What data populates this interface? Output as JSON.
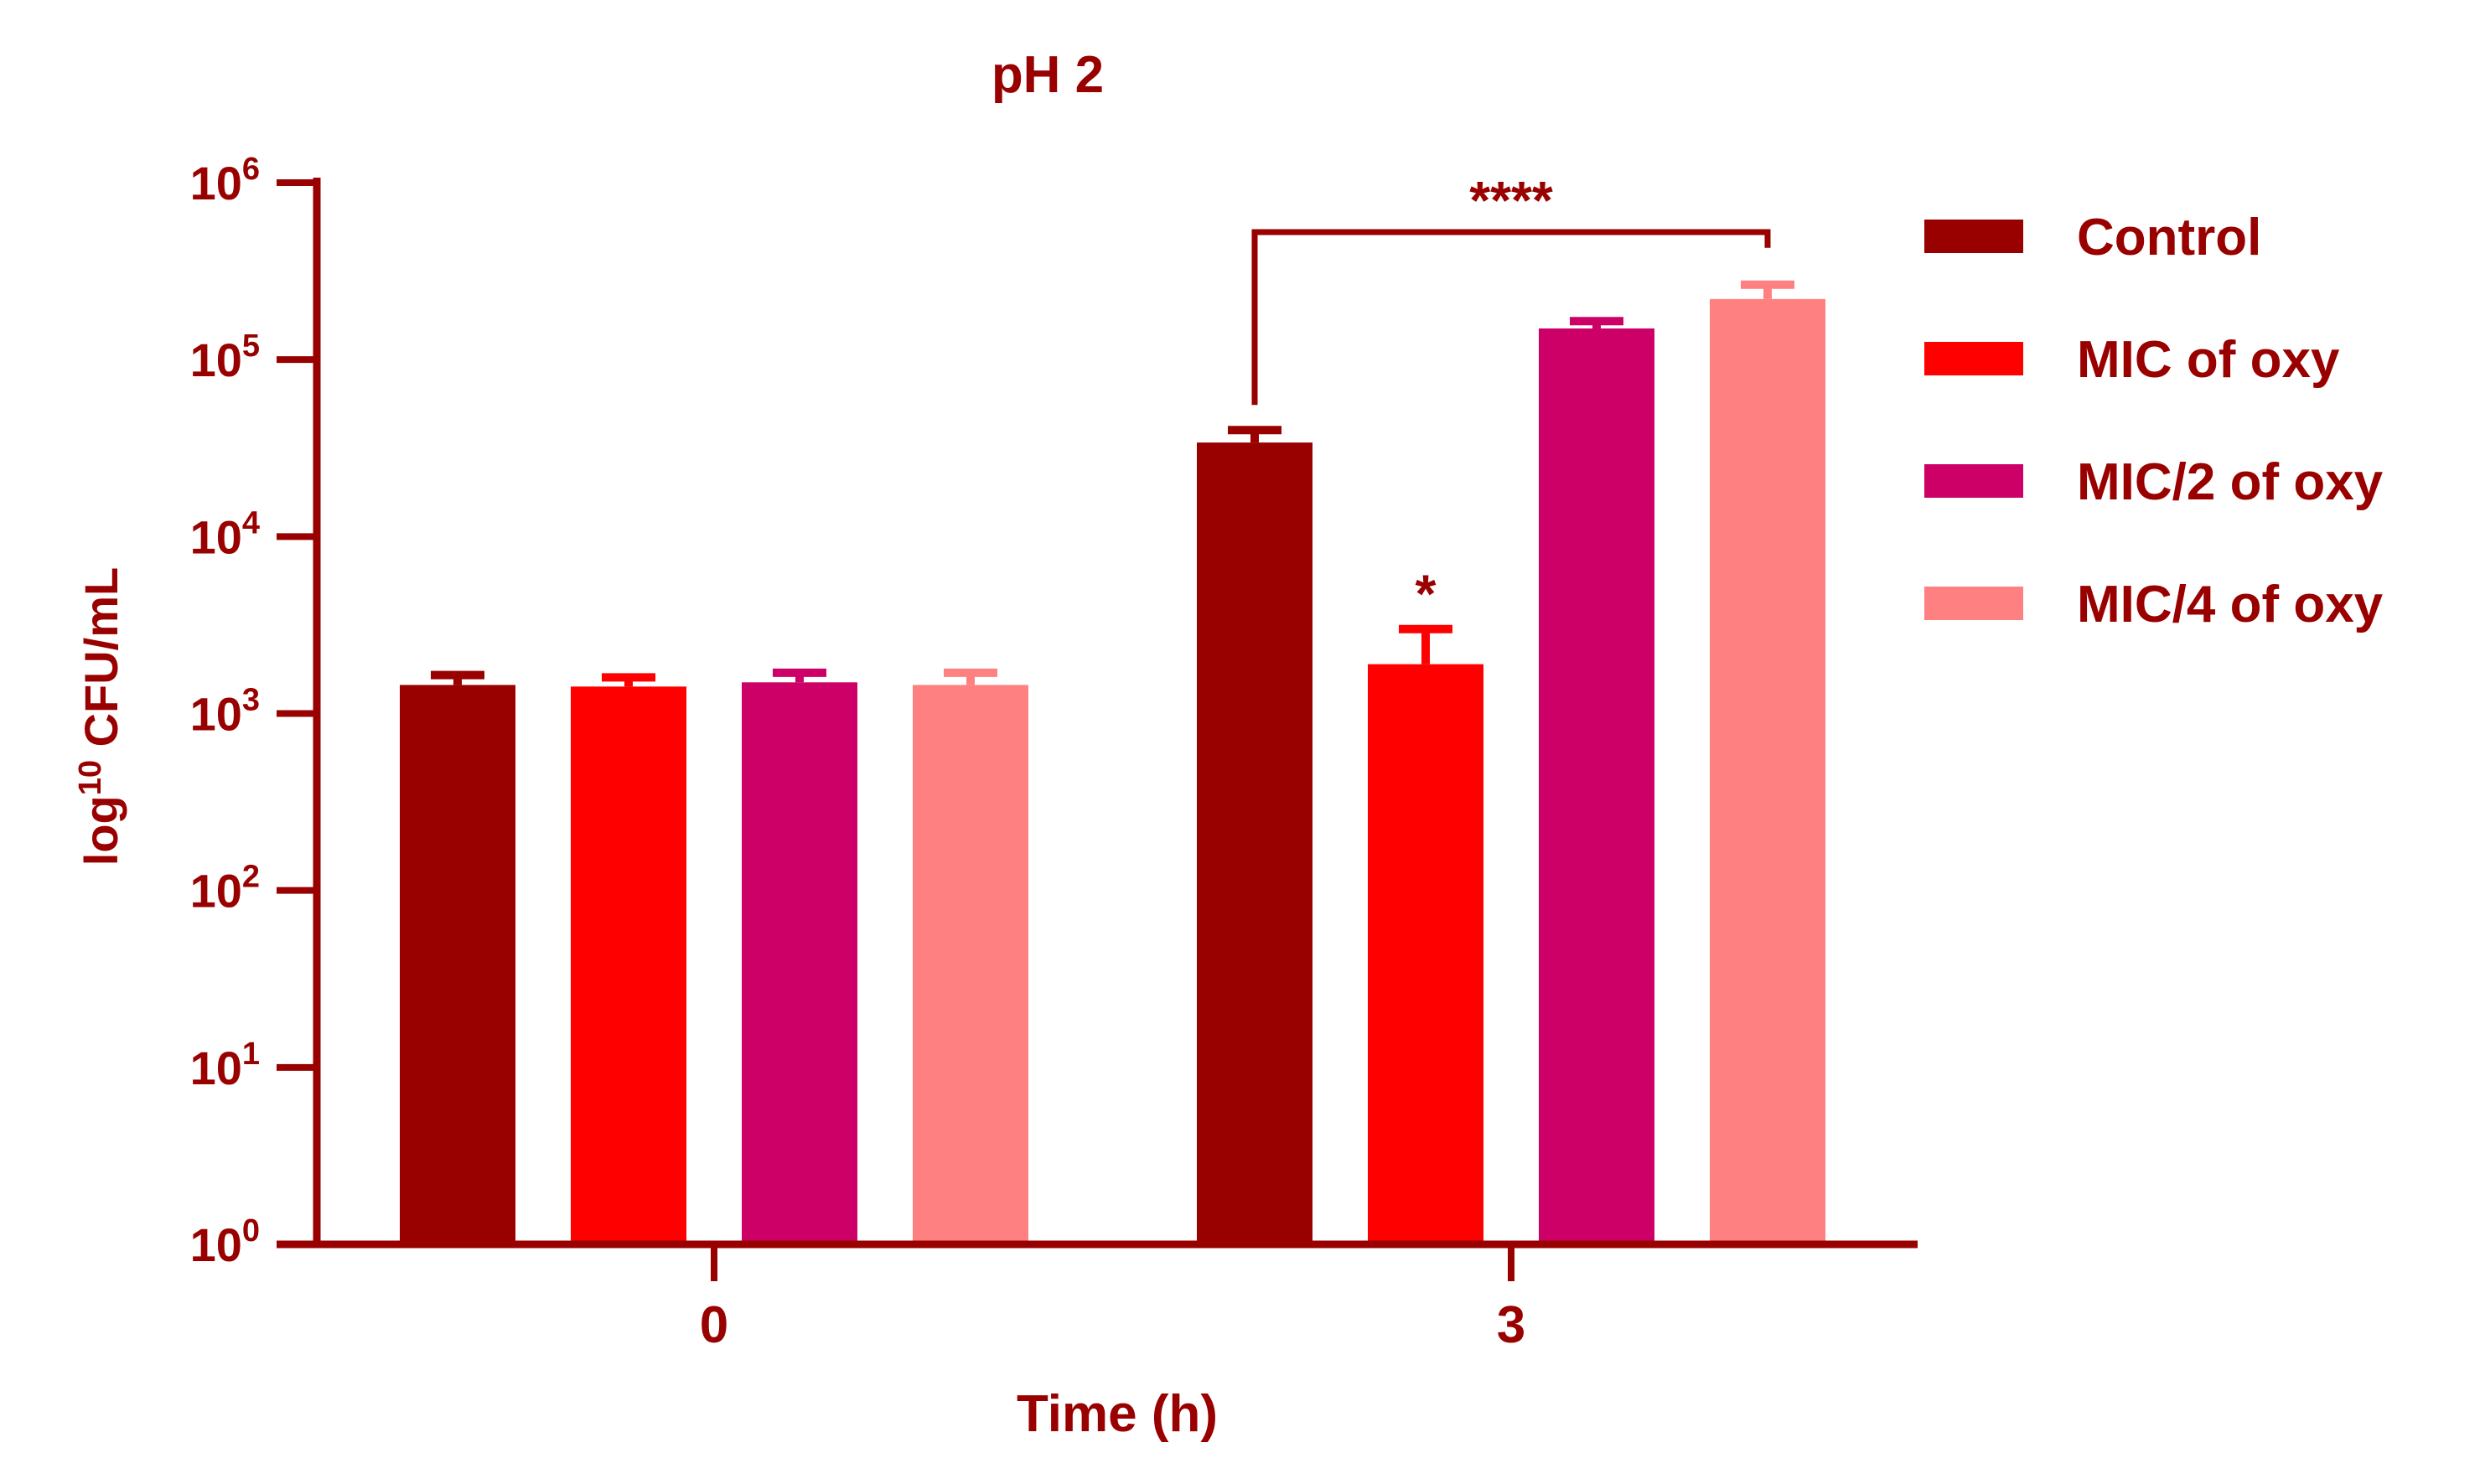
{
  "chart_data": {
    "type": "bar",
    "title": "pH 2",
    "xlabel": "Time (h)",
    "ylabel": {
      "base": "log",
      "sup": "10",
      "rest": " CFU/mL"
    },
    "yscale": "log",
    "ylim": [
      1,
      1000000
    ],
    "yticks": [
      {
        "value": 1,
        "base": "10",
        "exp": "0"
      },
      {
        "value": 10,
        "base": "10",
        "exp": "1"
      },
      {
        "value": 100,
        "base": "10",
        "exp": "2"
      },
      {
        "value": 1000,
        "base": "10",
        "exp": "3"
      },
      {
        "value": 10000,
        "base": "10",
        "exp": "4"
      },
      {
        "value": 100000,
        "base": "10",
        "exp": "5"
      },
      {
        "value": 1000000,
        "base": "10",
        "exp": "6"
      }
    ],
    "categories": [
      "0",
      "3"
    ],
    "series": [
      {
        "name": "Control",
        "color": "#990000",
        "values": [
          1450,
          34000
        ],
        "errors": [
          1650,
          40000
        ]
      },
      {
        "name": "MIC of oxy",
        "color": "#ff0000",
        "values": [
          1420,
          1900
        ],
        "errors": [
          1600,
          3000
        ]
      },
      {
        "name": "MIC/2 of oxy",
        "color": "#cc0066",
        "values": [
          1500,
          150000
        ],
        "errors": [
          1700,
          165000
        ]
      },
      {
        "name": "MIC/4 of oxy",
        "color": "#ff8080",
        "values": [
          1450,
          220000
        ],
        "errors": [
          1700,
          265000
        ]
      }
    ],
    "annotations": [
      {
        "text": "*",
        "category": 1,
        "series": 1
      },
      {
        "text": "****",
        "from": {
          "category": 1,
          "series": 0
        },
        "to": {
          "category": 1,
          "series": 3
        }
      }
    ],
    "legend": "right",
    "colors": {
      "axis": "#990000",
      "text": "#990000"
    }
  }
}
